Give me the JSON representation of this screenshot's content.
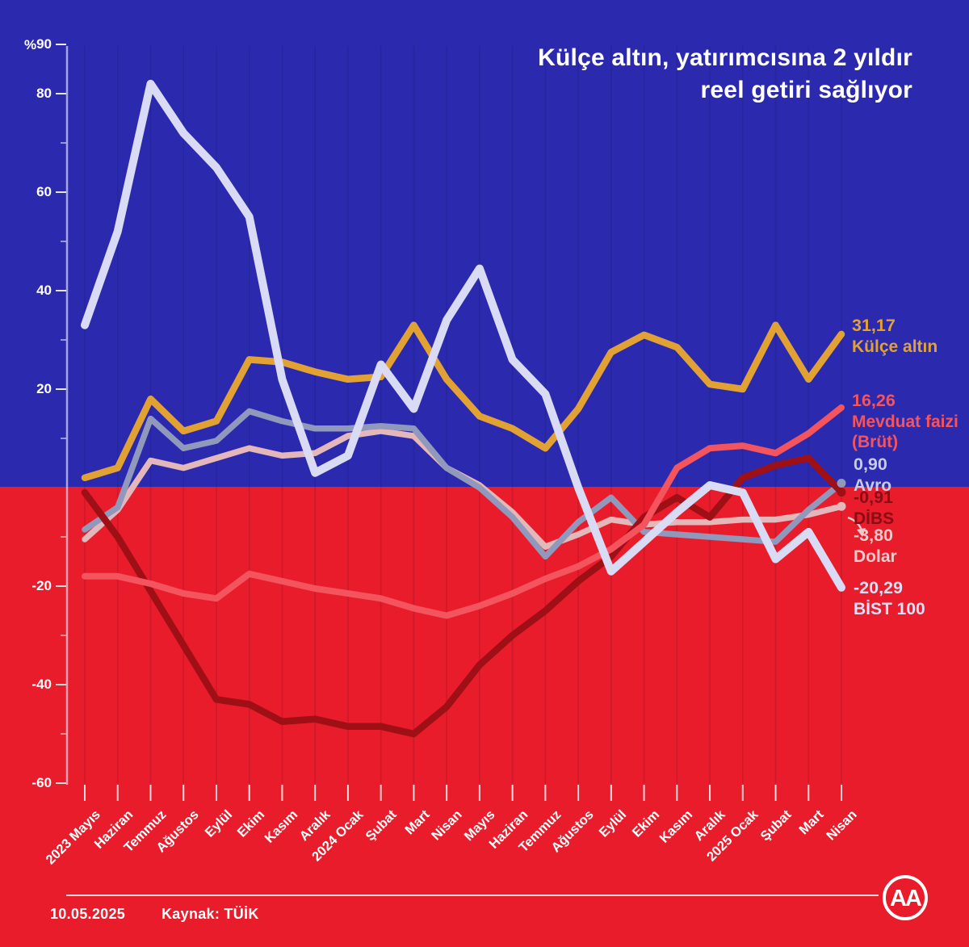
{
  "title": {
    "line1": "Külçe altın, yatırımcısına 2 yıldır",
    "line2": "reel getiri sağlıyor"
  },
  "colors": {
    "background_top": "#2b2aae",
    "background_bottom": "#e91c2b",
    "title_text": "#ffffff",
    "axis_text": "#ffffff"
  },
  "y_axis": {
    "unit": "%",
    "labeled_ticks": [
      90,
      80,
      60,
      40,
      20,
      -20,
      -40,
      -60
    ],
    "minor_tick_step": 10
  },
  "chart_data": {
    "type": "line",
    "title": "Külçe altın, yatırımcısına 2 yıldır reel getiri sağlıyor",
    "ylabel": "%",
    "ylim": [
      -60,
      90
    ],
    "grid": "vertical-only",
    "legend_position": "right",
    "x": [
      "2023 Mayıs",
      "Haziran",
      "Temmuz",
      "Ağustos",
      "Eylül",
      "Ekim",
      "Kasım",
      "Aralık",
      "2024 Ocak",
      "Şubat",
      "Mart",
      "Nisan",
      "Mayıs",
      "Haziran",
      "Temmuz",
      "Ağustos",
      "Eylül",
      "Ekim",
      "Kasım",
      "Aralık",
      "2025 Ocak",
      "Şubat",
      "Mart",
      "Nisan"
    ],
    "series": [
      {
        "id": "kulce-altin",
        "name": "Külçe altın",
        "color": "#e2a233",
        "line_width": 8.5,
        "end_value_label": "31,17",
        "legend_lines": [
          "Külçe altın"
        ],
        "label_color": "#e2a233",
        "end_dot": false,
        "values": [
          2,
          4,
          18,
          11.5,
          13.5,
          26,
          25.5,
          23.5,
          22,
          22.5,
          33,
          22,
          14.5,
          12,
          8,
          16,
          27.5,
          31,
          28.5,
          21,
          20,
          33,
          22,
          31.17
        ]
      },
      {
        "id": "mevduat",
        "name": "Mevduat faizi (Brüt)",
        "color": "#f4545e",
        "line_width": 8,
        "end_value_label": "16,26",
        "legend_lines": [
          "Mevduat faizi",
          "(Brüt)"
        ],
        "label_color": "#f4545e",
        "end_dot": false,
        "values": [
          -18,
          -18,
          -19.5,
          -21.5,
          -22.5,
          -17.5,
          -19,
          -20.5,
          -21.5,
          -22.5,
          -24.5,
          -26,
          -24,
          -21.5,
          -18.5,
          -16,
          -12.5,
          -7.5,
          4,
          8,
          8.5,
          7,
          11,
          16.26
        ]
      },
      {
        "id": "avro",
        "name": "Avro",
        "color": "#9098bb",
        "line_width": 7.5,
        "end_value_label": "0,90",
        "legend_lines": [
          "Avro"
        ],
        "label_color": "#c7cbe8",
        "end_dot": true,
        "values": [
          -8.5,
          -4,
          14,
          8,
          9.5,
          15.5,
          13.5,
          12,
          12,
          12.5,
          12,
          4,
          0,
          -6,
          -14,
          -7,
          -2,
          -9,
          -9.5,
          -10,
          -10.5,
          -11,
          -4.5,
          0.9
        ]
      },
      {
        "id": "dibs",
        "name": "DİBS",
        "color": "#9e0f16",
        "line_width": 8.5,
        "end_value_label": "-0,91",
        "legend_lines": [
          "DİBS"
        ],
        "label_color": "#8a0c14",
        "end_dot": true,
        "values": [
          -1,
          -10,
          -21,
          -32,
          -43,
          -44,
          -47.5,
          -47,
          -48.5,
          -48.5,
          -50,
          -44.5,
          -36,
          -30,
          -25,
          -19,
          -14,
          -6,
          -2,
          -6,
          2,
          4.5,
          6,
          -0.91
        ]
      },
      {
        "id": "dolar",
        "name": "Dolar",
        "color": "#e4b7ba",
        "line_width": 7.5,
        "end_value_label": "-3,80",
        "legend_lines": [
          "Dolar"
        ],
        "label_color": "#efc9cb",
        "end_dot": true,
        "values": [
          -10.5,
          -4.5,
          5.5,
          4,
          6,
          8,
          6.5,
          7,
          10.5,
          11.5,
          10.5,
          4,
          0.5,
          -5,
          -12,
          -9.5,
          -6.5,
          -7.5,
          -7,
          -7,
          -6.5,
          -6.5,
          -5.5,
          -3.8
        ]
      },
      {
        "id": "bist",
        "name": "BİST 100",
        "color": "#d9daf3",
        "line_width": 10,
        "end_value_label": "-20,29",
        "legend_lines": [
          "BİST 100"
        ],
        "label_color": "#e0e1f7",
        "end_dot": false,
        "values": [
          33,
          52,
          82,
          72,
          65,
          55,
          22,
          3,
          6.5,
          25,
          16,
          34,
          44.5,
          26,
          19,
          0,
          -17,
          -11,
          -5,
          0.5,
          -1,
          -14.5,
          -9,
          -20.29
        ]
      }
    ]
  },
  "footer": {
    "date": "10.05.2025",
    "source": "Kaynak: TÜİK",
    "logo_text": "AA"
  }
}
